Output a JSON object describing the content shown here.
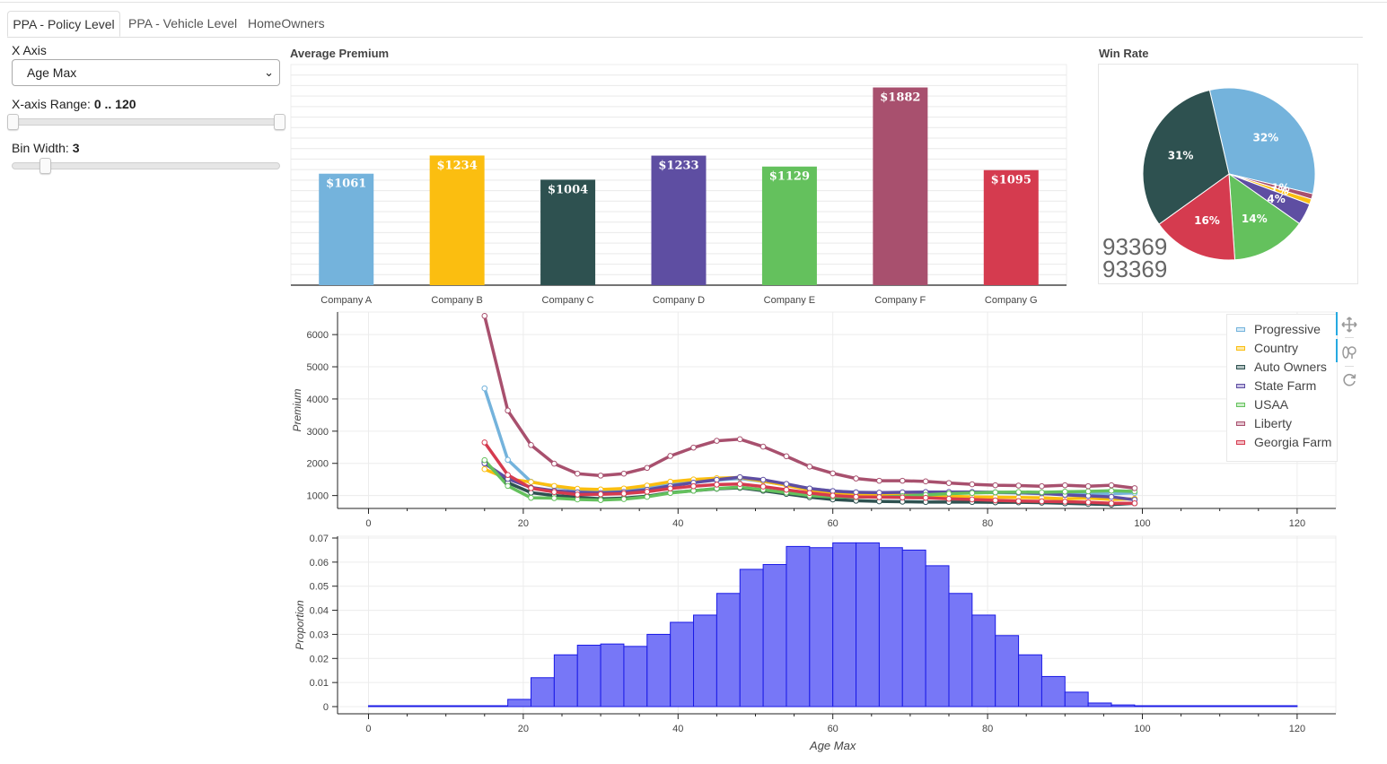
{
  "tabs": [
    {
      "label": "PPA - Policy Level",
      "active": true
    },
    {
      "label": "PPA - Vehicle Level",
      "active": false
    },
    {
      "label": "HomeOwners",
      "active": false
    }
  ],
  "controls": {
    "x_axis_label": "X Axis",
    "x_axis_value": "Age Max",
    "range_label": "X-axis Range: ",
    "range_value": "0 .. 120",
    "range_min": 0,
    "range_max": 120,
    "bin_label": "Bin Width: ",
    "bin_value": "3"
  },
  "bar_panel": {
    "title": "Average Premium"
  },
  "pie_panel": {
    "title": "Win Rate",
    "count_line1": "93369",
    "count_line2": "93369"
  },
  "toolbar": {
    "pan_icon": "pan-icon",
    "wheel_zoom_icon": "wheel-zoom-icon",
    "reset_icon": "reset-icon"
  },
  "chart_data": [
    {
      "type": "bar",
      "title": "Average Premium",
      "categories": [
        "Company A",
        "Company B",
        "Company C",
        "Company D",
        "Company E",
        "Company F",
        "Company G"
      ],
      "values": [
        1061,
        1234,
        1004,
        1233,
        1129,
        1882,
        1095
      ],
      "labels": [
        "$1061",
        "$1234",
        "$1004",
        "$1233",
        "$1129",
        "$1882",
        "$1095"
      ],
      "colors": [
        "#74b3dc",
        "#fbbe10",
        "#2e5150",
        "#5e4ea2",
        "#64c15d",
        "#a8506e",
        "#d53b4f"
      ],
      "ylim": [
        0,
        2100
      ]
    },
    {
      "type": "pie",
      "title": "Win Rate",
      "slices": [
        {
          "value": 32,
          "label": "32%",
          "color": "#74b3dc"
        },
        {
          "value": 1,
          "label": "1%",
          "color": "#a8506e"
        },
        {
          "value": 1,
          "label": "1%",
          "color": "#fbbe10"
        },
        {
          "value": 4,
          "label": "4%",
          "color": "#5e4ea2"
        },
        {
          "value": 14,
          "label": "14%",
          "color": "#64c15d"
        },
        {
          "value": 16,
          "label": "16%",
          "color": "#d53b4f"
        },
        {
          "value": 31,
          "label": "31%",
          "color": "#2e5150"
        }
      ]
    },
    {
      "type": "line",
      "xlim": [
        -4,
        125
      ],
      "ylim": [
        600,
        6700
      ],
      "ylabel": "Premium",
      "xticks": [
        0,
        20,
        40,
        60,
        80,
        100,
        120
      ],
      "yticks": [
        1000,
        2000,
        3000,
        4000,
        5000,
        6000
      ],
      "legend_position": "top-right",
      "x": [
        15,
        18,
        21,
        24,
        27,
        30,
        33,
        36,
        39,
        42,
        45,
        48,
        51,
        54,
        57,
        60,
        63,
        66,
        69,
        72,
        75,
        78,
        81,
        84,
        87,
        90,
        93,
        96,
        99
      ],
      "series": [
        {
          "name": "Progressive",
          "color": "#74b3dc",
          "values": [
            4330,
            2110,
            1430,
            1280,
            1180,
            1160,
            1180,
            1250,
            1360,
            1420,
            1480,
            1530,
            1440,
            1330,
            1220,
            1140,
            1100,
            1080,
            1080,
            1080,
            1090,
            1090,
            1090,
            1080,
            1060,
            1040,
            1050,
            1060,
            1080
          ]
        },
        {
          "name": "Country",
          "color": "#fbbe10",
          "values": [
            1820,
            1520,
            1420,
            1300,
            1210,
            1190,
            1220,
            1310,
            1430,
            1500,
            1540,
            1560,
            1450,
            1320,
            1170,
            1090,
            1050,
            1020,
            1010,
            1000,
            980,
            960,
            950,
            940,
            930,
            900,
            920,
            880,
            900
          ]
        },
        {
          "name": "Auto Owners",
          "color": "#2e5150",
          "values": [
            2050,
            1400,
            1090,
            1000,
            950,
            900,
            920,
            980,
            1090,
            1150,
            1210,
            1240,
            1150,
            1050,
            950,
            880,
            840,
            820,
            810,
            800,
            800,
            800,
            790,
            790,
            780,
            760,
            740,
            720,
            760
          ]
        },
        {
          "name": "State Farm",
          "color": "#5e4ea2",
          "values": [
            2000,
            1520,
            1250,
            1150,
            1100,
            1080,
            1110,
            1180,
            1300,
            1400,
            1490,
            1570,
            1490,
            1360,
            1220,
            1140,
            1100,
            1090,
            1100,
            1110,
            1110,
            1110,
            1100,
            1090,
            1070,
            1020,
            990,
            960,
            870
          ]
        },
        {
          "name": "USAA",
          "color": "#64c15d",
          "values": [
            2100,
            1300,
            930,
            920,
            880,
            860,
            890,
            960,
            1080,
            1150,
            1220,
            1260,
            1180,
            1090,
            1000,
            960,
            950,
            950,
            980,
            1020,
            1060,
            1080,
            1100,
            1110,
            1100,
            1120,
            1130,
            1150,
            1130
          ]
        },
        {
          "name": "Liberty",
          "color": "#a8506e",
          "values": [
            6580,
            3640,
            2570,
            1990,
            1680,
            1620,
            1680,
            1860,
            2230,
            2490,
            2700,
            2750,
            2520,
            2220,
            1900,
            1690,
            1530,
            1460,
            1460,
            1440,
            1390,
            1350,
            1320,
            1310,
            1290,
            1320,
            1290,
            1320,
            1230
          ]
        },
        {
          "name": "Georgia Farm",
          "color": "#d53b4f",
          "values": [
            2650,
            1640,
            1230,
            1110,
            1030,
            1040,
            1060,
            1120,
            1220,
            1290,
            1340,
            1360,
            1280,
            1180,
            1080,
            1000,
            960,
            950,
            940,
            930,
            900,
            880,
            850,
            830,
            820,
            810,
            790,
            760,
            760
          ]
        }
      ]
    },
    {
      "type": "bar",
      "xlabel": "Age Max",
      "ylabel": "Proportion",
      "xlim": [
        -4,
        125
      ],
      "ylim": [
        0,
        0.07
      ],
      "xticks": [
        0,
        20,
        40,
        60,
        80,
        100,
        120
      ],
      "yticks": [
        0,
        0.01,
        0.02,
        0.03,
        0.04,
        0.05,
        0.06,
        0.07
      ],
      "bin_start": 0,
      "bin_width": 3,
      "color": "#7777f7",
      "values": [
        0,
        0,
        0,
        0,
        0,
        0,
        0.003,
        0.012,
        0.0215,
        0.0255,
        0.026,
        0.025,
        0.03,
        0.035,
        0.038,
        0.047,
        0.057,
        0.059,
        0.0665,
        0.066,
        0.068,
        0.068,
        0.066,
        0.065,
        0.0585,
        0.047,
        0.038,
        0.0295,
        0.0215,
        0.0125,
        0.006,
        0.0015,
        0.0007,
        0.0003,
        0.0001,
        0.0001,
        0.0001,
        0.0001,
        0.0001,
        0.0001
      ]
    }
  ]
}
